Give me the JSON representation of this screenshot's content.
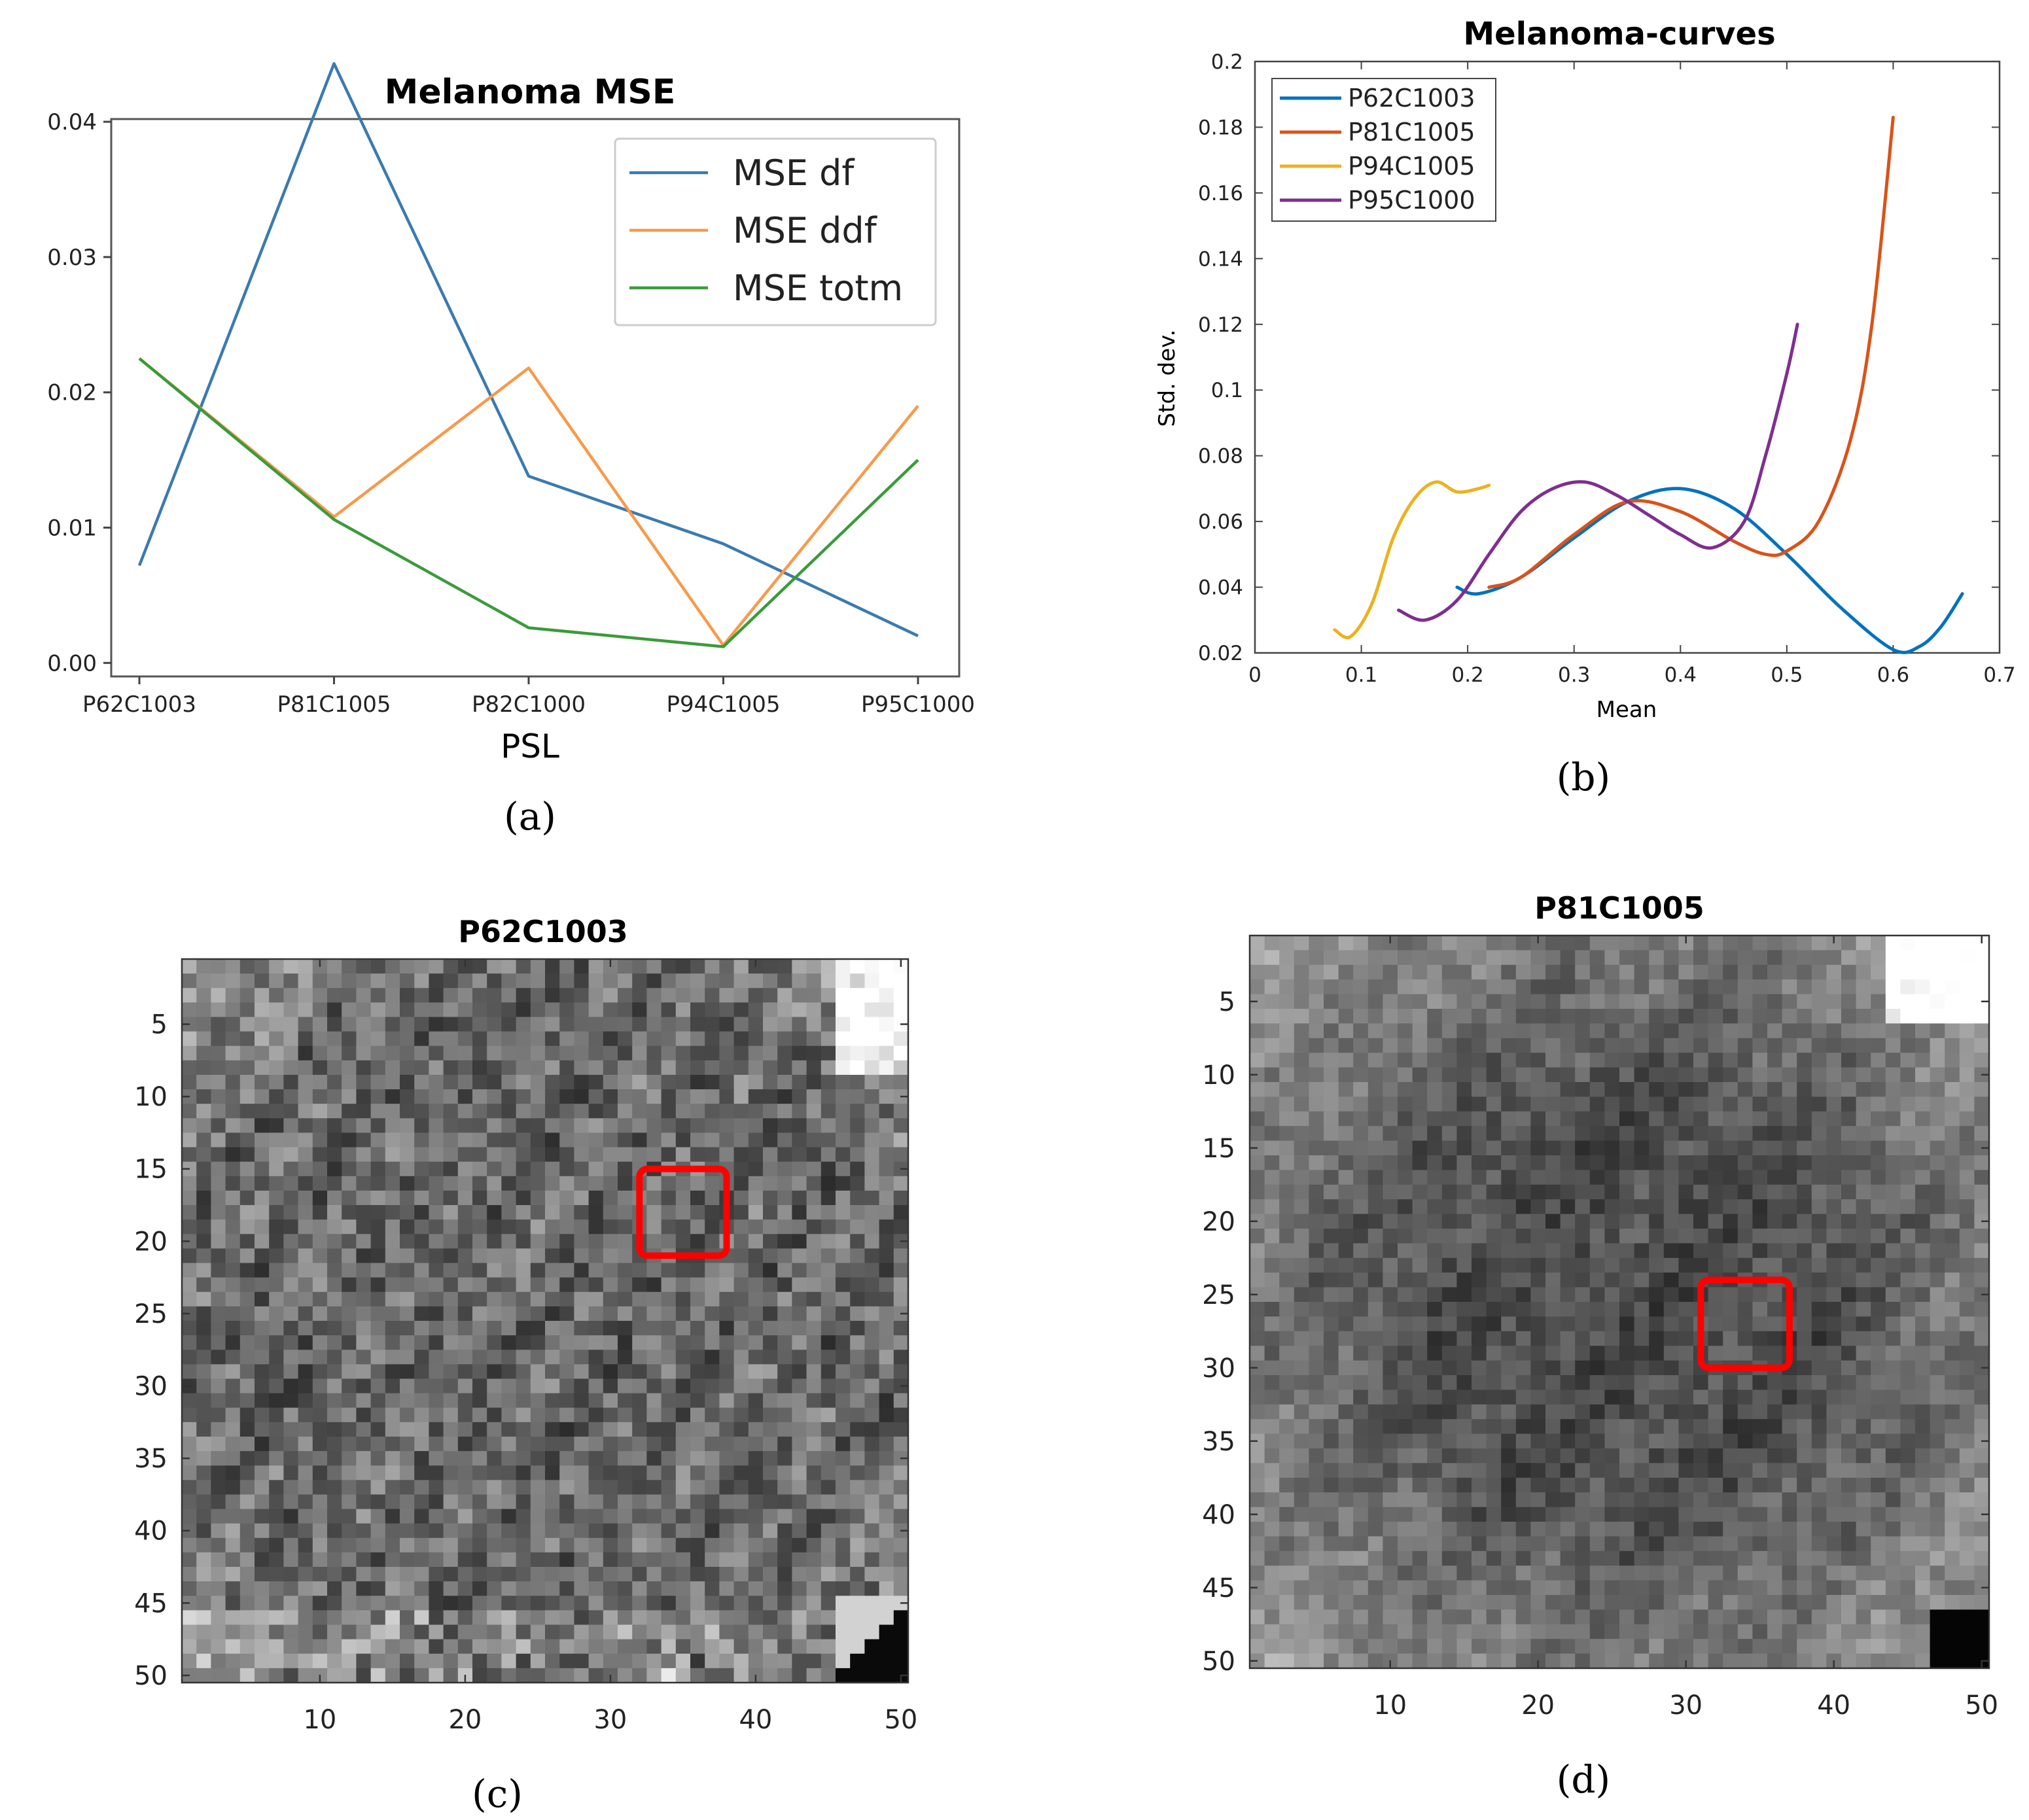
{
  "panel_labels": {
    "a": "(a)",
    "b": "(b)",
    "c": "(c)",
    "d": "(d)"
  },
  "chart_data": [
    {
      "id": "a",
      "type": "line",
      "title": "Melanoma MSE",
      "xlabel": "PSL",
      "ylabel": "",
      "categories": [
        "P62C1003",
        "P81C1005",
        "P82C1000",
        "P94C1005",
        "P95C1000"
      ],
      "ylim": [
        -0.001,
        0.0402
      ],
      "yticks": [
        "0.00",
        "0.01",
        "0.02",
        "0.03",
        "0.04"
      ],
      "legend_position": "top-right",
      "series": [
        {
          "name": "MSE df",
          "color": "#3b7ab0",
          "values": [
            0.0072,
            0.0443,
            0.0138,
            0.0088,
            0.002
          ]
        },
        {
          "name": "MSE ddf",
          "color": "#f79a4b",
          "values": [
            0.0225,
            0.0108,
            0.0218,
            0.0013,
            0.019
          ]
        },
        {
          "name": "MSE totm",
          "color": "#3a9b3a",
          "values": [
            0.0225,
            0.0106,
            0.0026,
            0.0012,
            0.015
          ]
        }
      ]
    },
    {
      "id": "b",
      "type": "line",
      "title": "Melanoma-curves",
      "xlabel": "Mean",
      "ylabel": "Std. dev.",
      "xlim": [
        0,
        0.7
      ],
      "ylim": [
        0.02,
        0.2
      ],
      "xticks": [
        "0",
        "0.1",
        "0.2",
        "0.3",
        "0.4",
        "0.5",
        "0.6",
        "0.7"
      ],
      "yticks": [
        "0.02",
        "0.04",
        "0.06",
        "0.08",
        "0.1",
        "0.12",
        "0.14",
        "0.16",
        "0.18",
        "0.2"
      ],
      "legend_position": "top-left",
      "series": [
        {
          "name": "P62C1003",
          "color": "#0072bd",
          "points": [
            [
              0.19,
              0.04
            ],
            [
              0.21,
              0.038
            ],
            [
              0.25,
              0.043
            ],
            [
              0.3,
              0.055
            ],
            [
              0.35,
              0.066
            ],
            [
              0.4,
              0.07
            ],
            [
              0.45,
              0.064
            ],
            [
              0.5,
              0.05
            ],
            [
              0.55,
              0.034
            ],
            [
              0.6,
              0.021
            ],
            [
              0.625,
              0.022
            ],
            [
              0.645,
              0.028
            ],
            [
              0.665,
              0.038
            ]
          ]
        },
        {
          "name": "P81C1005",
          "color": "#d95319",
          "points": [
            [
              0.22,
              0.04
            ],
            [
              0.25,
              0.043
            ],
            [
              0.3,
              0.056
            ],
            [
              0.35,
              0.066
            ],
            [
              0.4,
              0.063
            ],
            [
              0.45,
              0.054
            ],
            [
              0.48,
              0.05
            ],
            [
              0.5,
              0.051
            ],
            [
              0.53,
              0.06
            ],
            [
              0.56,
              0.085
            ],
            [
              0.58,
              0.12
            ],
            [
              0.6,
              0.183
            ]
          ]
        },
        {
          "name": "P94C1005",
          "color": "#edb120",
          "points": [
            [
              0.075,
              0.027
            ],
            [
              0.09,
              0.025
            ],
            [
              0.11,
              0.035
            ],
            [
              0.13,
              0.055
            ],
            [
              0.15,
              0.067
            ],
            [
              0.17,
              0.072
            ],
            [
              0.19,
              0.069
            ],
            [
              0.21,
              0.07
            ],
            [
              0.22,
              0.071
            ]
          ]
        },
        {
          "name": "P95C1000",
          "color": "#7e2f8e",
          "points": [
            [
              0.135,
              0.033
            ],
            [
              0.16,
              0.03
            ],
            [
              0.19,
              0.036
            ],
            [
              0.22,
              0.05
            ],
            [
              0.25,
              0.063
            ],
            [
              0.28,
              0.07
            ],
            [
              0.31,
              0.072
            ],
            [
              0.34,
              0.068
            ],
            [
              0.37,
              0.062
            ],
            [
              0.4,
              0.056
            ],
            [
              0.43,
              0.052
            ],
            [
              0.46,
              0.06
            ],
            [
              0.48,
              0.08
            ],
            [
              0.5,
              0.105
            ],
            [
              0.51,
              0.12
            ]
          ]
        }
      ]
    },
    {
      "id": "c",
      "type": "heatmap",
      "title": "P62C1003",
      "xlim": [
        1,
        50
      ],
      "ylim": [
        1,
        50
      ],
      "xticks": [
        "10",
        "20",
        "30",
        "40",
        "50"
      ],
      "yticks": [
        "5",
        "10",
        "15",
        "20",
        "25",
        "30",
        "35",
        "40",
        "45",
        "50"
      ],
      "colormap": "grayscale",
      "roi_box": {
        "x_range": [
          32,
          38
        ],
        "y_range": [
          15,
          21
        ],
        "color": "#ff0000"
      }
    },
    {
      "id": "d",
      "type": "heatmap",
      "title": "P81C1005",
      "xlim": [
        1,
        50
      ],
      "ylim": [
        1,
        50
      ],
      "xticks": [
        "10",
        "20",
        "30",
        "40",
        "50"
      ],
      "yticks": [
        "5",
        "10",
        "15",
        "20",
        "25",
        "30",
        "35",
        "40",
        "45",
        "50"
      ],
      "colormap": "grayscale",
      "roi_box": {
        "x_range": [
          31,
          37
        ],
        "y_range": [
          24,
          30
        ],
        "color": "#ff0000"
      }
    }
  ]
}
